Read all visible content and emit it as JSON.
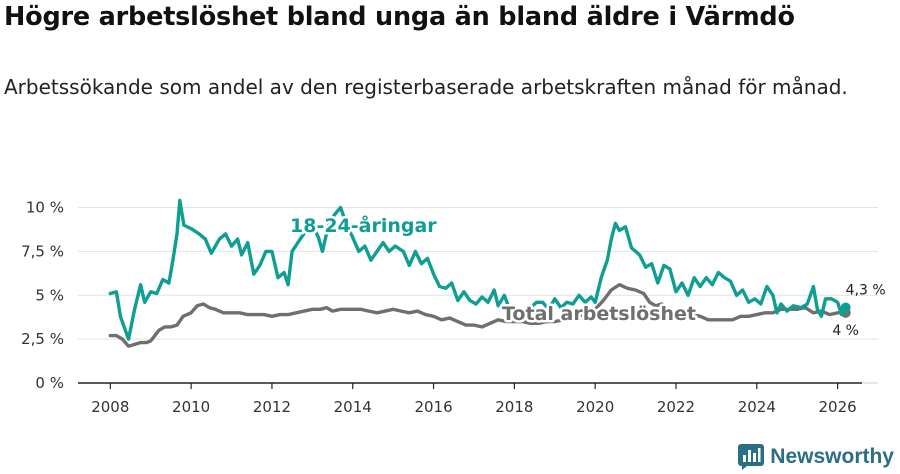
{
  "title": "Högre arbetslöshet bland unga än bland äldre i Värmdö",
  "subtitle": "Arbetssökande som andel av den registerbaserade arbetskraften månad för månad.",
  "brand": {
    "name": "Newsworthy",
    "icon": "bar-chart-logo-icon",
    "color": "#2a6f86"
  },
  "chart_data": {
    "type": "line",
    "title": "Högre arbetslöshet bland unga än bland äldre i Värmdö",
    "xlabel": "",
    "ylabel": "",
    "xlim": [
      2007.2,
      2027.0
    ],
    "ylim": [
      0,
      11
    ],
    "grid": true,
    "y_ticks": [
      0,
      2.5,
      5,
      7.5,
      10
    ],
    "y_tick_labels": [
      "0 %",
      "2,5 %",
      "5 %",
      "7,5 %",
      "10 %"
    ],
    "x_ticks": [
      2008,
      2010,
      2012,
      2014,
      2016,
      2018,
      2020,
      2022,
      2024,
      2026
    ],
    "x_tick_labels": [
      "2008",
      "2010",
      "2012",
      "2014",
      "2016",
      "2018",
      "2020",
      "2022",
      "2024",
      "2026"
    ],
    "series": [
      {
        "name": "18-24-åringar",
        "label": "18-24-åringar",
        "color": "#0f9e94",
        "end_label": "4,3 %",
        "points": [
          [
            2008.0,
            5.1
          ],
          [
            2008.15,
            5.2
          ],
          [
            2008.25,
            3.8
          ],
          [
            2008.45,
            2.5
          ],
          [
            2008.6,
            4.2
          ],
          [
            2008.75,
            5.6
          ],
          [
            2008.85,
            4.6
          ],
          [
            2009.0,
            5.2
          ],
          [
            2009.15,
            5.1
          ],
          [
            2009.3,
            5.9
          ],
          [
            2009.45,
            5.7
          ],
          [
            2009.55,
            7.0
          ],
          [
            2009.65,
            8.5
          ],
          [
            2009.72,
            10.4
          ],
          [
            2009.82,
            9.0
          ],
          [
            2010.0,
            8.8
          ],
          [
            2010.2,
            8.5
          ],
          [
            2010.35,
            8.2
          ],
          [
            2010.5,
            7.4
          ],
          [
            2010.7,
            8.2
          ],
          [
            2010.85,
            8.5
          ],
          [
            2011.0,
            7.8
          ],
          [
            2011.15,
            8.2
          ],
          [
            2011.25,
            7.3
          ],
          [
            2011.4,
            8.0
          ],
          [
            2011.55,
            6.2
          ],
          [
            2011.7,
            6.7
          ],
          [
            2011.85,
            7.5
          ],
          [
            2012.0,
            7.5
          ],
          [
            2012.15,
            6.0
          ],
          [
            2012.3,
            6.3
          ],
          [
            2012.4,
            5.6
          ],
          [
            2012.5,
            7.5
          ],
          [
            2012.7,
            8.2
          ],
          [
            2012.85,
            8.7
          ],
          [
            2013.0,
            9.0
          ],
          [
            2013.15,
            8.3
          ],
          [
            2013.25,
            7.5
          ],
          [
            2013.4,
            9.0
          ],
          [
            2013.55,
            9.6
          ],
          [
            2013.7,
            10.0
          ],
          [
            2013.85,
            9.0
          ],
          [
            2014.0,
            8.3
          ],
          [
            2014.15,
            7.5
          ],
          [
            2014.3,
            7.8
          ],
          [
            2014.45,
            7.0
          ],
          [
            2014.6,
            7.5
          ],
          [
            2014.75,
            8.0
          ],
          [
            2014.9,
            7.5
          ],
          [
            2015.05,
            7.8
          ],
          [
            2015.25,
            7.5
          ],
          [
            2015.4,
            6.7
          ],
          [
            2015.55,
            7.5
          ],
          [
            2015.7,
            6.8
          ],
          [
            2015.85,
            7.1
          ],
          [
            2016.0,
            6.2
          ],
          [
            2016.15,
            5.5
          ],
          [
            2016.3,
            5.4
          ],
          [
            2016.45,
            5.7
          ],
          [
            2016.6,
            4.7
          ],
          [
            2016.75,
            5.2
          ],
          [
            2016.9,
            4.7
          ],
          [
            2017.05,
            4.5
          ],
          [
            2017.2,
            4.9
          ],
          [
            2017.35,
            4.6
          ],
          [
            2017.5,
            5.3
          ],
          [
            2017.6,
            4.4
          ],
          [
            2017.75,
            5.0
          ],
          [
            2017.9,
            4.1
          ],
          [
            2018.1,
            3.5
          ],
          [
            2018.25,
            4.2
          ],
          [
            2018.4,
            4.3
          ],
          [
            2018.55,
            4.6
          ],
          [
            2018.7,
            4.6
          ],
          [
            2018.85,
            4.2
          ],
          [
            2019.0,
            4.8
          ],
          [
            2019.15,
            4.3
          ],
          [
            2019.3,
            4.6
          ],
          [
            2019.45,
            4.5
          ],
          [
            2019.6,
            5.0
          ],
          [
            2019.75,
            4.6
          ],
          [
            2019.9,
            4.9
          ],
          [
            2020.0,
            4.6
          ],
          [
            2020.15,
            6.0
          ],
          [
            2020.3,
            7.0
          ],
          [
            2020.4,
            8.2
          ],
          [
            2020.5,
            9.1
          ],
          [
            2020.6,
            8.7
          ],
          [
            2020.75,
            8.9
          ],
          [
            2020.9,
            7.7
          ],
          [
            2021.1,
            7.3
          ],
          [
            2021.25,
            6.6
          ],
          [
            2021.4,
            6.8
          ],
          [
            2021.55,
            5.7
          ],
          [
            2021.7,
            6.7
          ],
          [
            2021.85,
            6.5
          ],
          [
            2022.0,
            5.2
          ],
          [
            2022.15,
            5.7
          ],
          [
            2022.3,
            5.0
          ],
          [
            2022.45,
            6.0
          ],
          [
            2022.6,
            5.5
          ],
          [
            2022.75,
            6.0
          ],
          [
            2022.9,
            5.6
          ],
          [
            2023.05,
            6.3
          ],
          [
            2023.2,
            6.0
          ],
          [
            2023.35,
            5.8
          ],
          [
            2023.5,
            5.0
          ],
          [
            2023.65,
            5.3
          ],
          [
            2023.8,
            4.6
          ],
          [
            2023.95,
            4.8
          ],
          [
            2024.1,
            4.5
          ],
          [
            2024.25,
            5.5
          ],
          [
            2024.4,
            5.0
          ],
          [
            2024.5,
            4.0
          ],
          [
            2024.6,
            4.5
          ],
          [
            2024.75,
            4.1
          ],
          [
            2024.9,
            4.4
          ],
          [
            2025.1,
            4.3
          ],
          [
            2025.25,
            4.5
          ],
          [
            2025.4,
            5.5
          ],
          [
            2025.5,
            4.2
          ],
          [
            2025.6,
            3.8
          ],
          [
            2025.7,
            4.8
          ],
          [
            2025.85,
            4.8
          ],
          [
            2026.0,
            4.6
          ],
          [
            2026.1,
            3.9
          ],
          [
            2026.2,
            4.3
          ]
        ]
      },
      {
        "name": "Total arbetslöshet",
        "label": "Total arbetslöshet",
        "color": "#6f6f6f",
        "end_label": "4 %",
        "points": [
          [
            2008.0,
            2.7
          ],
          [
            2008.15,
            2.7
          ],
          [
            2008.3,
            2.5
          ],
          [
            2008.45,
            2.1
          ],
          [
            2008.6,
            2.2
          ],
          [
            2008.75,
            2.3
          ],
          [
            2008.9,
            2.3
          ],
          [
            2009.0,
            2.4
          ],
          [
            2009.2,
            3.0
          ],
          [
            2009.35,
            3.2
          ],
          [
            2009.5,
            3.2
          ],
          [
            2009.65,
            3.3
          ],
          [
            2009.8,
            3.8
          ],
          [
            2010.0,
            4.0
          ],
          [
            2010.15,
            4.4
          ],
          [
            2010.3,
            4.5
          ],
          [
            2010.45,
            4.3
          ],
          [
            2010.6,
            4.2
          ],
          [
            2010.8,
            4.0
          ],
          [
            2011.0,
            4.0
          ],
          [
            2011.2,
            4.0
          ],
          [
            2011.4,
            3.9
          ],
          [
            2011.6,
            3.9
          ],
          [
            2011.8,
            3.9
          ],
          [
            2012.0,
            3.8
          ],
          [
            2012.2,
            3.9
          ],
          [
            2012.4,
            3.9
          ],
          [
            2012.6,
            4.0
          ],
          [
            2012.8,
            4.1
          ],
          [
            2013.0,
            4.2
          ],
          [
            2013.2,
            4.2
          ],
          [
            2013.35,
            4.3
          ],
          [
            2013.5,
            4.1
          ],
          [
            2013.7,
            4.2
          ],
          [
            2013.85,
            4.2
          ],
          [
            2014.0,
            4.2
          ],
          [
            2014.2,
            4.2
          ],
          [
            2014.4,
            4.1
          ],
          [
            2014.6,
            4.0
          ],
          [
            2014.8,
            4.1
          ],
          [
            2015.0,
            4.2
          ],
          [
            2015.2,
            4.1
          ],
          [
            2015.4,
            4.0
          ],
          [
            2015.6,
            4.1
          ],
          [
            2015.8,
            3.9
          ],
          [
            2016.0,
            3.8
          ],
          [
            2016.2,
            3.6
          ],
          [
            2016.4,
            3.7
          ],
          [
            2016.6,
            3.5
          ],
          [
            2016.8,
            3.3
          ],
          [
            2017.0,
            3.3
          ],
          [
            2017.2,
            3.2
          ],
          [
            2017.4,
            3.4
          ],
          [
            2017.6,
            3.6
          ],
          [
            2017.8,
            3.5
          ],
          [
            2018.0,
            3.5
          ],
          [
            2018.2,
            3.5
          ],
          [
            2018.4,
            3.4
          ],
          [
            2018.6,
            3.4
          ],
          [
            2018.8,
            3.5
          ],
          [
            2019.0,
            3.5
          ],
          [
            2019.2,
            3.6
          ],
          [
            2019.4,
            3.6
          ],
          [
            2019.6,
            3.8
          ],
          [
            2019.8,
            4.0
          ],
          [
            2020.0,
            4.2
          ],
          [
            2020.2,
            4.7
          ],
          [
            2020.4,
            5.3
          ],
          [
            2020.6,
            5.6
          ],
          [
            2020.8,
            5.4
          ],
          [
            2021.0,
            5.3
          ],
          [
            2021.2,
            5.1
          ],
          [
            2021.35,
            4.6
          ],
          [
            2021.5,
            4.4
          ],
          [
            2021.65,
            4.5
          ],
          [
            2021.8,
            4.2
          ],
          [
            2022.0,
            4.0
          ],
          [
            2022.2,
            3.9
          ],
          [
            2022.4,
            3.9
          ],
          [
            2022.6,
            3.8
          ],
          [
            2022.8,
            3.6
          ],
          [
            2023.0,
            3.6
          ],
          [
            2023.2,
            3.6
          ],
          [
            2023.4,
            3.6
          ],
          [
            2023.6,
            3.8
          ],
          [
            2023.8,
            3.8
          ],
          [
            2024.0,
            3.9
          ],
          [
            2024.2,
            4.0
          ],
          [
            2024.4,
            4.0
          ],
          [
            2024.6,
            4.2
          ],
          [
            2024.8,
            4.2
          ],
          [
            2025.0,
            4.2
          ],
          [
            2025.2,
            4.3
          ],
          [
            2025.4,
            4.0
          ],
          [
            2025.6,
            4.1
          ],
          [
            2025.8,
            3.9
          ],
          [
            2026.0,
            4.0
          ],
          [
            2026.2,
            4.0
          ]
        ]
      }
    ]
  }
}
